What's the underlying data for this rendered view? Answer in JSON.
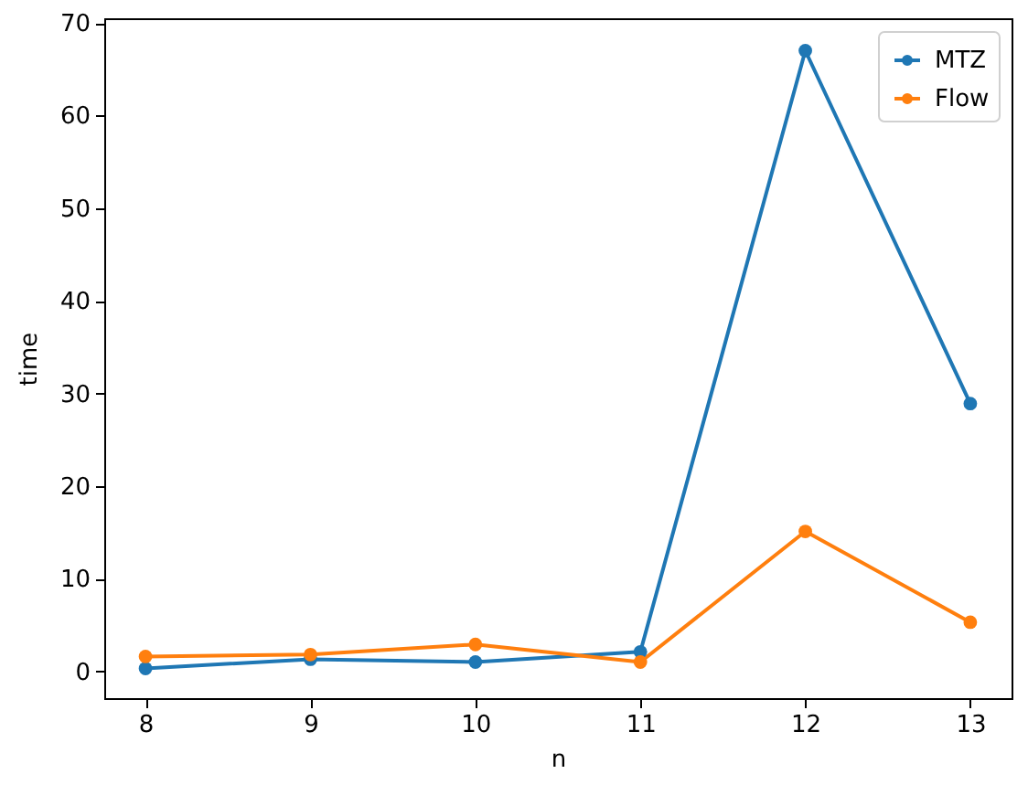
{
  "chart_data": {
    "type": "line",
    "xlabel": "n",
    "ylabel": "time",
    "x": [
      8,
      9,
      10,
      11,
      12,
      13
    ],
    "series": [
      {
        "name": "MTZ",
        "color": "#1f77b4",
        "values": [
          0.3,
          1.3,
          1.0,
          2.1,
          67.0,
          28.9
        ]
      },
      {
        "name": "Flow",
        "color": "#ff7f0e",
        "values": [
          1.6,
          1.8,
          2.9,
          1.0,
          15.1,
          5.3
        ]
      }
    ],
    "xlim": [
      7.75,
      13.25
    ],
    "xticks": [
      8,
      9,
      10,
      11,
      12,
      13
    ],
    "ylim": [
      -2.9,
      70.5
    ],
    "yticks": [
      0,
      10,
      20,
      30,
      40,
      50,
      60,
      70
    ],
    "grid": false,
    "legend": "top right",
    "marker": "circle"
  }
}
